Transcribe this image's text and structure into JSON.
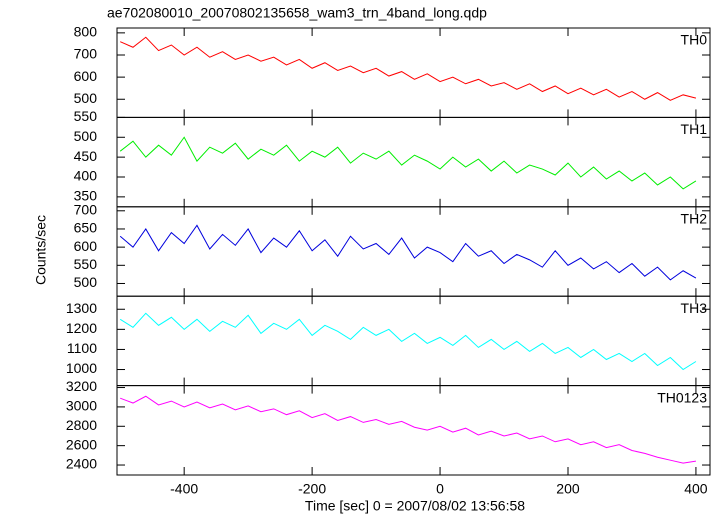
{
  "chart_data": {
    "title": "ae702080010_20070802135658_wam3_trn_4band_long.qdp",
    "xlabel": "Time [sec] 0 = 2007/08/02 13:56:58",
    "ylabel": "Counts/sec",
    "xlim": [
      -505,
      422
    ],
    "xticks": [
      -400,
      -200,
      0,
      200,
      400
    ],
    "x": [
      -500,
      -480,
      -460,
      -440,
      -420,
      -400,
      -380,
      -360,
      -340,
      -320,
      -300,
      -280,
      -260,
      -240,
      -220,
      -200,
      -180,
      -160,
      -140,
      -120,
      -100,
      -80,
      -60,
      -40,
      -20,
      0,
      20,
      40,
      60,
      80,
      100,
      120,
      140,
      160,
      180,
      200,
      220,
      240,
      260,
      280,
      300,
      320,
      340,
      360,
      380,
      400
    ],
    "panels": [
      {
        "type": "line",
        "ylim": [
          418,
          822
        ],
        "yticks": [
          500,
          600,
          700,
          800
        ],
        "series": [
          {
            "name": "TH0",
            "color": "#ff0000",
            "values": [
              760,
              735,
              780,
              720,
              745,
              700,
              735,
              690,
              715,
              680,
              700,
              672,
              690,
              655,
              680,
              640,
              665,
              630,
              650,
              620,
              640,
              605,
              625,
              590,
              615,
              580,
              600,
              570,
              590,
              560,
              575,
              545,
              570,
              535,
              560,
              525,
              550,
              520,
              545,
              510,
              535,
              500,
              530,
              495,
              520,
              505
            ]
          }
        ]
      },
      {
        "type": "line",
        "ylim": [
          325,
          550
        ],
        "yticks": [
          350,
          400,
          450,
          500,
          550
        ],
        "series": [
          {
            "name": "TH1",
            "color": "#00ee00",
            "values": [
              465,
              490,
              450,
              480,
              455,
              500,
              440,
              475,
              460,
              485,
              445,
              470,
              455,
              480,
              440,
              465,
              450,
              475,
              435,
              460,
              445,
              465,
              430,
              455,
              440,
              420,
              450,
              425,
              445,
              415,
              440,
              410,
              430,
              420,
              405,
              435,
              400,
              425,
              395,
              415,
              390,
              410,
              380,
              400,
              370,
              390
            ]
          }
        ]
      },
      {
        "type": "line",
        "ylim": [
          465,
          711
        ],
        "yticks": [
          500,
          550,
          600,
          650,
          700
        ],
        "series": [
          {
            "name": "TH2",
            "color": "#0000dd",
            "values": [
              630,
              600,
              650,
              590,
              640,
              610,
              660,
              595,
              635,
              605,
              650,
              585,
              625,
              600,
              645,
              590,
              620,
              575,
              630,
              595,
              610,
              580,
              625,
              570,
              600,
              585,
              560,
              610,
              575,
              590,
              555,
              580,
              565,
              545,
              590,
              550,
              570,
              540,
              560,
              530,
              555,
              520,
              545,
              510,
              535,
              515
            ]
          }
        ]
      },
      {
        "type": "line",
        "ylim": [
          920,
          1365
        ],
        "yticks": [
          1000,
          1100,
          1200,
          1300
        ],
        "series": [
          {
            "name": "TH3",
            "color": "#00ffff",
            "values": [
              1250,
              1210,
              1280,
              1220,
              1260,
              1200,
              1250,
              1190,
              1240,
              1210,
              1270,
              1180,
              1230,
              1200,
              1250,
              1170,
              1220,
              1190,
              1150,
              1210,
              1170,
              1200,
              1140,
              1180,
              1130,
              1160,
              1120,
              1170,
              1110,
              1150,
              1100,
              1140,
              1090,
              1130,
              1080,
              1110,
              1060,
              1100,
              1050,
              1080,
              1040,
              1080,
              1020,
              1060,
              1000,
              1040
            ]
          }
        ]
      },
      {
        "type": "line",
        "ylim": [
          2297,
          3220
        ],
        "yticks": [
          2400,
          2600,
          2800,
          3000,
          3200
        ],
        "series": [
          {
            "name": "TH0123",
            "color": "#ff00ff",
            "values": [
              3090,
              3040,
              3110,
              3020,
              3060,
              3000,
              3050,
              2990,
              3030,
              2970,
              3010,
              2950,
              2980,
              2920,
              2960,
              2890,
              2930,
              2860,
              2900,
              2840,
              2870,
              2820,
              2850,
              2790,
              2760,
              2800,
              2740,
              2780,
              2710,
              2750,
              2700,
              2730,
              2670,
              2700,
              2640,
              2670,
              2610,
              2640,
              2580,
              2610,
              2550,
              2520,
              2480,
              2450,
              2420,
              2440
            ]
          }
        ]
      }
    ]
  }
}
